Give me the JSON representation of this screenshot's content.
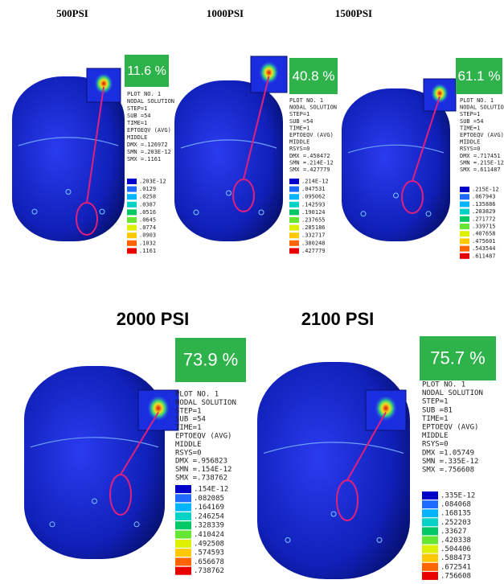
{
  "panels": [
    {
      "title": "500PSI",
      "percent": "11.6 %",
      "info": [
        "PLOT NO.   1",
        "NODAL SOLUTION",
        "STEP=1",
        "SUB =54",
        "TIME=1",
        "EPTOEQV  (AVG)",
        "MIDDLE",
        "DMX =.126972",
        "SMN =.203E-12",
        "SMX =.1161"
      ],
      "legend": [
        ".203E-12",
        ".0129",
        ".0258",
        ".0387",
        ".0516",
        ".0645",
        ".0774",
        ".0903",
        ".1032",
        ".1161"
      ]
    },
    {
      "title": "1000PSI",
      "percent": "40.8 %",
      "info": [
        "PLOT NO.   1",
        "NODAL SOLUTION",
        "STEP=1",
        "SUB =54",
        "TIME=1",
        "EPTOEQV  (AVG)",
        "MIDDLE",
        "RSYS=0",
        "DMX =.458472",
        "SMN =.214E-12",
        "SMX =.427779"
      ],
      "legend": [
        ".214E-12",
        ".047531",
        ".095062",
        ".142593",
        ".190124",
        ".237655",
        ".285186",
        ".332717",
        ".380248",
        ".427779"
      ]
    },
    {
      "title": "1500PSI",
      "percent": "61.1 %",
      "info": [
        "PLOT NO.   1",
        "NODAL SOLUTION",
        "STEP=1",
        "SUB =54",
        "TIME=1",
        "EPTOEQV  (AVG)",
        "MIDDLE",
        "RSYS=0",
        "DMX =.717451",
        "SMN =.215E-12",
        "SMX =.611487"
      ],
      "legend": [
        ".215E-12",
        ".067943",
        ".135886",
        ".203829",
        ".271772",
        ".339715",
        ".407658",
        ".475601",
        ".543544",
        ".611487"
      ]
    },
    {
      "title": "2000 PSI",
      "percent": "73.9 %",
      "info": [
        "PLOT NO.   1",
        "NODAL SOLUTION",
        "STEP=1",
        "SUB =54",
        "TIME=1",
        "EPTOEQV  (AVG)",
        "MIDDLE",
        "RSYS=0",
        "DMX =.956823",
        "SMN =.154E-12",
        "SMX =.738762"
      ],
      "legend": [
        ".154E-12",
        ".082085",
        ".164169",
        ".246254",
        ".328339",
        ".410424",
        ".492508",
        ".574593",
        ".656678",
        ".738762"
      ]
    },
    {
      "title": "2100 PSI",
      "percent": "75.7 %",
      "info": [
        "PLOT NO.   1",
        "NODAL SOLUTION",
        "STEP=1",
        "SUB =81",
        "TIME=1",
        "EPTOEQV  (AVG)",
        "MIDDLE",
        "RSYS=0",
        "DMX =1.05749",
        "SMN =.335E-12",
        "SMX =.756608"
      ],
      "legend": [
        ".335E-12",
        ".084068",
        ".168135",
        ".252203",
        ".33627",
        ".420338",
        ".504406",
        ".588473",
        ".672541",
        ".756608"
      ]
    }
  ]
}
